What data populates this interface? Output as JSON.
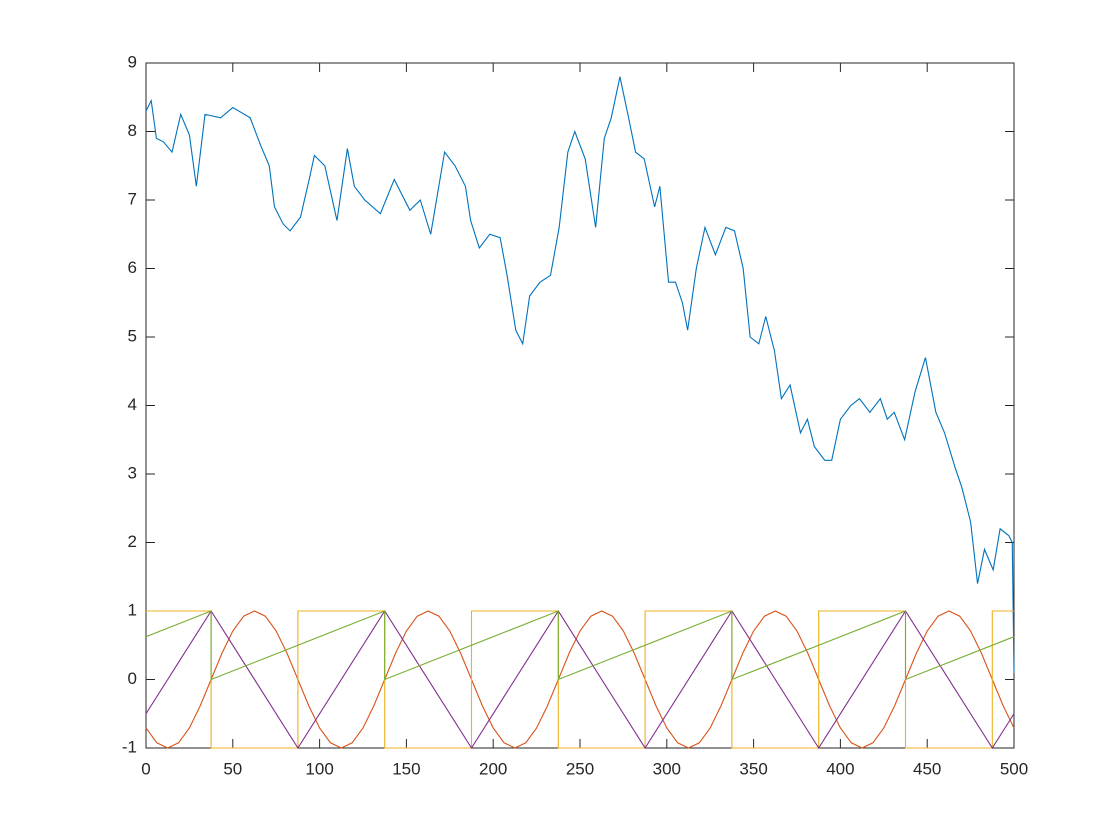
{
  "chart_data": {
    "type": "line",
    "xlim": [
      0,
      500
    ],
    "xticks": [
      0,
      50,
      100,
      150,
      200,
      250,
      300,
      350,
      400,
      450,
      500
    ],
    "ylim": [
      -1,
      9
    ],
    "yticks": [
      -1,
      0,
      1,
      2,
      3,
      4,
      5,
      6,
      7,
      8,
      9
    ],
    "series": [
      {
        "color": "#0072BD",
        "x": [
          0,
          3,
          6,
          10,
          15,
          20,
          25,
          29,
          34,
          43,
          50,
          60,
          66,
          71,
          74,
          79,
          83,
          89,
          94,
          97,
          103,
          110,
          116,
          120,
          126,
          135,
          143,
          152,
          158,
          164,
          172,
          178,
          184,
          187,
          192,
          198,
          204,
          208,
          213,
          217,
          221,
          227,
          233,
          238,
          243,
          247,
          253,
          259,
          264,
          268,
          273,
          278,
          282,
          287,
          293,
          296,
          301,
          305,
          309,
          312,
          317,
          322,
          328,
          334,
          339,
          344,
          348,
          353,
          357,
          362,
          366,
          371,
          377,
          381,
          385,
          391,
          395,
          400,
          406,
          411,
          417,
          423,
          427,
          431,
          437,
          443,
          449,
          455,
          460,
          466,
          470,
          475,
          479,
          483,
          488,
          492,
          497,
          499,
          500
        ],
        "values": [
          8.3,
          8.45,
          7.9,
          7.85,
          7.7,
          8.25,
          7.95,
          7.2,
          8.25,
          8.2,
          8.35,
          8.2,
          7.8,
          7.5,
          6.9,
          6.65,
          6.55,
          6.75,
          7.3,
          7.65,
          7.5,
          6.7,
          7.75,
          7.2,
          7.0,
          6.8,
          7.3,
          6.85,
          7.0,
          6.5,
          7.7,
          7.5,
          7.2,
          6.7,
          6.3,
          6.5,
          6.45,
          5.9,
          5.1,
          4.9,
          5.6,
          5.8,
          5.9,
          6.6,
          7.7,
          8.0,
          7.6,
          6.6,
          7.9,
          8.2,
          8.8,
          8.2,
          7.7,
          7.6,
          6.9,
          7.2,
          5.8,
          5.8,
          5.5,
          5.1,
          6.0,
          6.6,
          6.2,
          6.6,
          6.55,
          6.0,
          5.0,
          4.9,
          5.3,
          4.8,
          4.1,
          4.3,
          3.6,
          3.8,
          3.4,
          3.2,
          3.2,
          3.8,
          4.0,
          4.1,
          3.9,
          4.1,
          3.8,
          3.9,
          3.5,
          4.2,
          4.7,
          3.9,
          3.6,
          3.1,
          2.8,
          2.3,
          1.4,
          1.9,
          1.6,
          2.2,
          2.1,
          2.0,
          0.1
        ]
      },
      {
        "color": "#D95319",
        "x": [
          0,
          6.25,
          12.5,
          18.75,
          25,
          31.25,
          37.5,
          43.75,
          50,
          56.25,
          62.5,
          68.75,
          75,
          81.25,
          87.5,
          93.75,
          100,
          106.25,
          112.5,
          118.75,
          125,
          131.25,
          137.5,
          143.75,
          150,
          156.25,
          162.5,
          168.75,
          175,
          181.25,
          187.5,
          193.75,
          200,
          206.25,
          212.5,
          218.75,
          225,
          231.25,
          237.5,
          243.75,
          250,
          256.25,
          262.5,
          268.75,
          275,
          281.25,
          287.5,
          293.75,
          300,
          306.25,
          312.5,
          318.75,
          325,
          331.25,
          337.5,
          343.75,
          350,
          356.25,
          362.5,
          368.75,
          375,
          381.25,
          387.5,
          393.75,
          400,
          406.25,
          412.5,
          418.75,
          425,
          431.25,
          437.5,
          443.75,
          450,
          456.25,
          462.5,
          468.75,
          475,
          481.25,
          487.5,
          493.75,
          500
        ],
        "values": [
          -0.707,
          -0.924,
          -1,
          -0.924,
          -0.707,
          -0.383,
          0,
          0.383,
          0.707,
          0.924,
          1,
          0.924,
          0.707,
          0.383,
          0,
          -0.383,
          -0.707,
          -0.924,
          -1,
          -0.924,
          -0.707,
          -0.383,
          0,
          0.383,
          0.707,
          0.924,
          1,
          0.924,
          0.707,
          0.383,
          0,
          -0.383,
          -0.707,
          -0.924,
          -1,
          -0.924,
          -0.707,
          -0.383,
          0,
          0.383,
          0.707,
          0.924,
          1,
          0.924,
          0.707,
          0.383,
          0,
          -0.383,
          -0.707,
          -0.924,
          -1,
          -0.924,
          -0.707,
          -0.383,
          0,
          0.383,
          0.707,
          0.924,
          1,
          0.924,
          0.707,
          0.383,
          0,
          -0.383,
          -0.707,
          -0.924,
          -1,
          -0.924,
          -0.707,
          -0.383,
          0,
          0.383,
          0.707,
          0.924,
          1,
          0.924,
          0.707,
          0.383,
          0,
          -0.383,
          -0.707
        ]
      },
      {
        "color": "#EDB120",
        "x": [
          0,
          37.5,
          37.5,
          87.5,
          87.5,
          137.5,
          137.5,
          187.5,
          187.5,
          237.5,
          237.5,
          287.5,
          287.5,
          337.5,
          337.5,
          387.5,
          387.5,
          437.5,
          437.5,
          487.5,
          487.5,
          500
        ],
        "values": [
          1,
          1,
          -1,
          -1,
          1,
          1,
          -1,
          -1,
          1,
          1,
          -1,
          -1,
          1,
          1,
          -1,
          -1,
          1,
          1,
          -1,
          -1,
          1,
          1
        ]
      },
      {
        "color": "#7E2F8E",
        "x": [
          0,
          37.5,
          87.5,
          137.5,
          187.5,
          237.5,
          287.5,
          337.5,
          387.5,
          437.5,
          487.5,
          500
        ],
        "values": [
          -0.5,
          1,
          -1,
          1,
          -1,
          1,
          -1,
          1,
          -1,
          1,
          -1,
          -0.5
        ]
      },
      {
        "color": "#77AC30",
        "x": [
          0,
          37.5,
          37.5,
          137.5,
          137.5,
          237.5,
          237.5,
          337.5,
          337.5,
          437.5,
          437.5,
          500
        ],
        "values": [
          0.625,
          1,
          0,
          1,
          0,
          1,
          0,
          1,
          0,
          1,
          0,
          0.625
        ]
      }
    ]
  }
}
